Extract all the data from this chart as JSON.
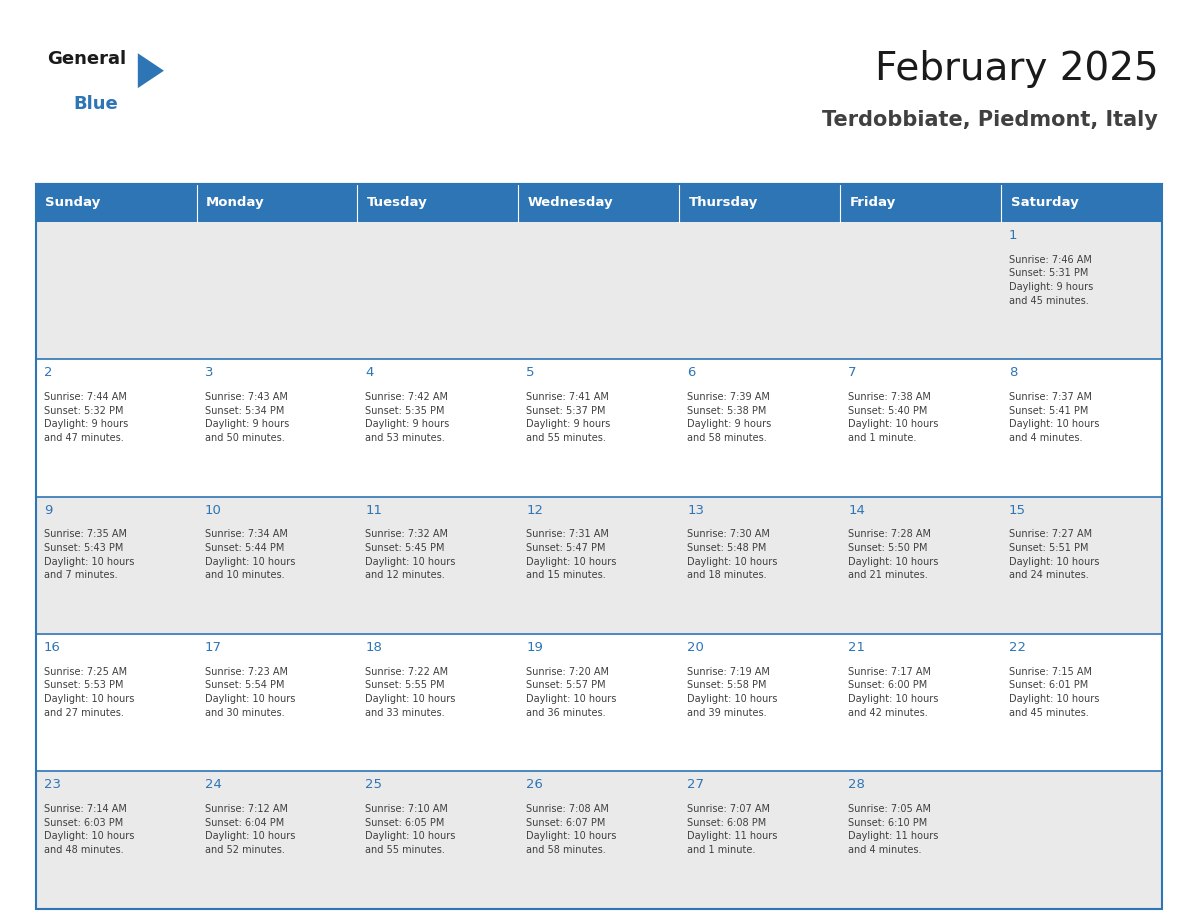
{
  "title": "February 2025",
  "subtitle": "Terdobbiate, Piedmont, Italy",
  "header_bg": "#2E75B6",
  "header_text_color": "#FFFFFF",
  "cell_bg_odd": "#EAEAEA",
  "cell_bg_even": "#FFFFFF",
  "day_number_color": "#2E75B6",
  "text_color": "#404040",
  "border_color": "#2E75B6",
  "days_of_week": [
    "Sunday",
    "Monday",
    "Tuesday",
    "Wednesday",
    "Thursday",
    "Friday",
    "Saturday"
  ],
  "calendar_data": [
    [
      {
        "day": 0,
        "info": ""
      },
      {
        "day": 0,
        "info": ""
      },
      {
        "day": 0,
        "info": ""
      },
      {
        "day": 0,
        "info": ""
      },
      {
        "day": 0,
        "info": ""
      },
      {
        "day": 0,
        "info": ""
      },
      {
        "day": 1,
        "info": "Sunrise: 7:46 AM\nSunset: 5:31 PM\nDaylight: 9 hours\nand 45 minutes."
      }
    ],
    [
      {
        "day": 2,
        "info": "Sunrise: 7:44 AM\nSunset: 5:32 PM\nDaylight: 9 hours\nand 47 minutes."
      },
      {
        "day": 3,
        "info": "Sunrise: 7:43 AM\nSunset: 5:34 PM\nDaylight: 9 hours\nand 50 minutes."
      },
      {
        "day": 4,
        "info": "Sunrise: 7:42 AM\nSunset: 5:35 PM\nDaylight: 9 hours\nand 53 minutes."
      },
      {
        "day": 5,
        "info": "Sunrise: 7:41 AM\nSunset: 5:37 PM\nDaylight: 9 hours\nand 55 minutes."
      },
      {
        "day": 6,
        "info": "Sunrise: 7:39 AM\nSunset: 5:38 PM\nDaylight: 9 hours\nand 58 minutes."
      },
      {
        "day": 7,
        "info": "Sunrise: 7:38 AM\nSunset: 5:40 PM\nDaylight: 10 hours\nand 1 minute."
      },
      {
        "day": 8,
        "info": "Sunrise: 7:37 AM\nSunset: 5:41 PM\nDaylight: 10 hours\nand 4 minutes."
      }
    ],
    [
      {
        "day": 9,
        "info": "Sunrise: 7:35 AM\nSunset: 5:43 PM\nDaylight: 10 hours\nand 7 minutes."
      },
      {
        "day": 10,
        "info": "Sunrise: 7:34 AM\nSunset: 5:44 PM\nDaylight: 10 hours\nand 10 minutes."
      },
      {
        "day": 11,
        "info": "Sunrise: 7:32 AM\nSunset: 5:45 PM\nDaylight: 10 hours\nand 12 minutes."
      },
      {
        "day": 12,
        "info": "Sunrise: 7:31 AM\nSunset: 5:47 PM\nDaylight: 10 hours\nand 15 minutes."
      },
      {
        "day": 13,
        "info": "Sunrise: 7:30 AM\nSunset: 5:48 PM\nDaylight: 10 hours\nand 18 minutes."
      },
      {
        "day": 14,
        "info": "Sunrise: 7:28 AM\nSunset: 5:50 PM\nDaylight: 10 hours\nand 21 minutes."
      },
      {
        "day": 15,
        "info": "Sunrise: 7:27 AM\nSunset: 5:51 PM\nDaylight: 10 hours\nand 24 minutes."
      }
    ],
    [
      {
        "day": 16,
        "info": "Sunrise: 7:25 AM\nSunset: 5:53 PM\nDaylight: 10 hours\nand 27 minutes."
      },
      {
        "day": 17,
        "info": "Sunrise: 7:23 AM\nSunset: 5:54 PM\nDaylight: 10 hours\nand 30 minutes."
      },
      {
        "day": 18,
        "info": "Sunrise: 7:22 AM\nSunset: 5:55 PM\nDaylight: 10 hours\nand 33 minutes."
      },
      {
        "day": 19,
        "info": "Sunrise: 7:20 AM\nSunset: 5:57 PM\nDaylight: 10 hours\nand 36 minutes."
      },
      {
        "day": 20,
        "info": "Sunrise: 7:19 AM\nSunset: 5:58 PM\nDaylight: 10 hours\nand 39 minutes."
      },
      {
        "day": 21,
        "info": "Sunrise: 7:17 AM\nSunset: 6:00 PM\nDaylight: 10 hours\nand 42 minutes."
      },
      {
        "day": 22,
        "info": "Sunrise: 7:15 AM\nSunset: 6:01 PM\nDaylight: 10 hours\nand 45 minutes."
      }
    ],
    [
      {
        "day": 23,
        "info": "Sunrise: 7:14 AM\nSunset: 6:03 PM\nDaylight: 10 hours\nand 48 minutes."
      },
      {
        "day": 24,
        "info": "Sunrise: 7:12 AM\nSunset: 6:04 PM\nDaylight: 10 hours\nand 52 minutes."
      },
      {
        "day": 25,
        "info": "Sunrise: 7:10 AM\nSunset: 6:05 PM\nDaylight: 10 hours\nand 55 minutes."
      },
      {
        "day": 26,
        "info": "Sunrise: 7:08 AM\nSunset: 6:07 PM\nDaylight: 10 hours\nand 58 minutes."
      },
      {
        "day": 27,
        "info": "Sunrise: 7:07 AM\nSunset: 6:08 PM\nDaylight: 11 hours\nand 1 minute."
      },
      {
        "day": 28,
        "info": "Sunrise: 7:05 AM\nSunset: 6:10 PM\nDaylight: 11 hours\nand 4 minutes."
      },
      {
        "day": 0,
        "info": ""
      }
    ]
  ],
  "logo_text_general": "General",
  "logo_text_blue": "Blue",
  "logo_color_general": "#1a1a1a",
  "logo_color_blue": "#2E75B6",
  "logo_triangle_color": "#2E75B6",
  "fig_width": 11.88,
  "fig_height": 9.18,
  "dpi": 100
}
